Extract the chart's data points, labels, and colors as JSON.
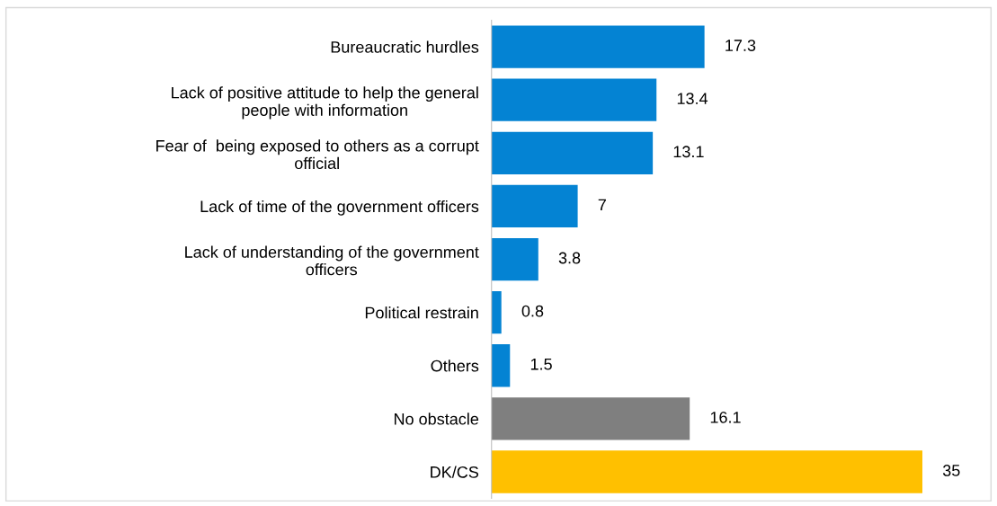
{
  "chart_data": {
    "type": "bar",
    "orientation": "horizontal",
    "categories": [
      "Bureaucratic hurdles",
      "Lack of positive attitude to help the general\npeople with information",
      "Fear of  being exposed to others as a corrupt\nofficial",
      "Lack of time of the government officers",
      "Lack of understanding of the government\nofficers",
      "Political restrain",
      "Others",
      "No obstacle",
      "DK/CS"
    ],
    "values": [
      17.3,
      13.4,
      13.1,
      7,
      3.8,
      0.8,
      1.5,
      16.1,
      35
    ],
    "colors": [
      "#0483d3",
      "#0483d3",
      "#0483d3",
      "#0483d3",
      "#0483d3",
      "#0483d3",
      "#0483d3",
      "#7f7f7f",
      "#ffc000"
    ],
    "data_labels": true,
    "grid": false,
    "legend": false,
    "tick_labels": "y"
  }
}
